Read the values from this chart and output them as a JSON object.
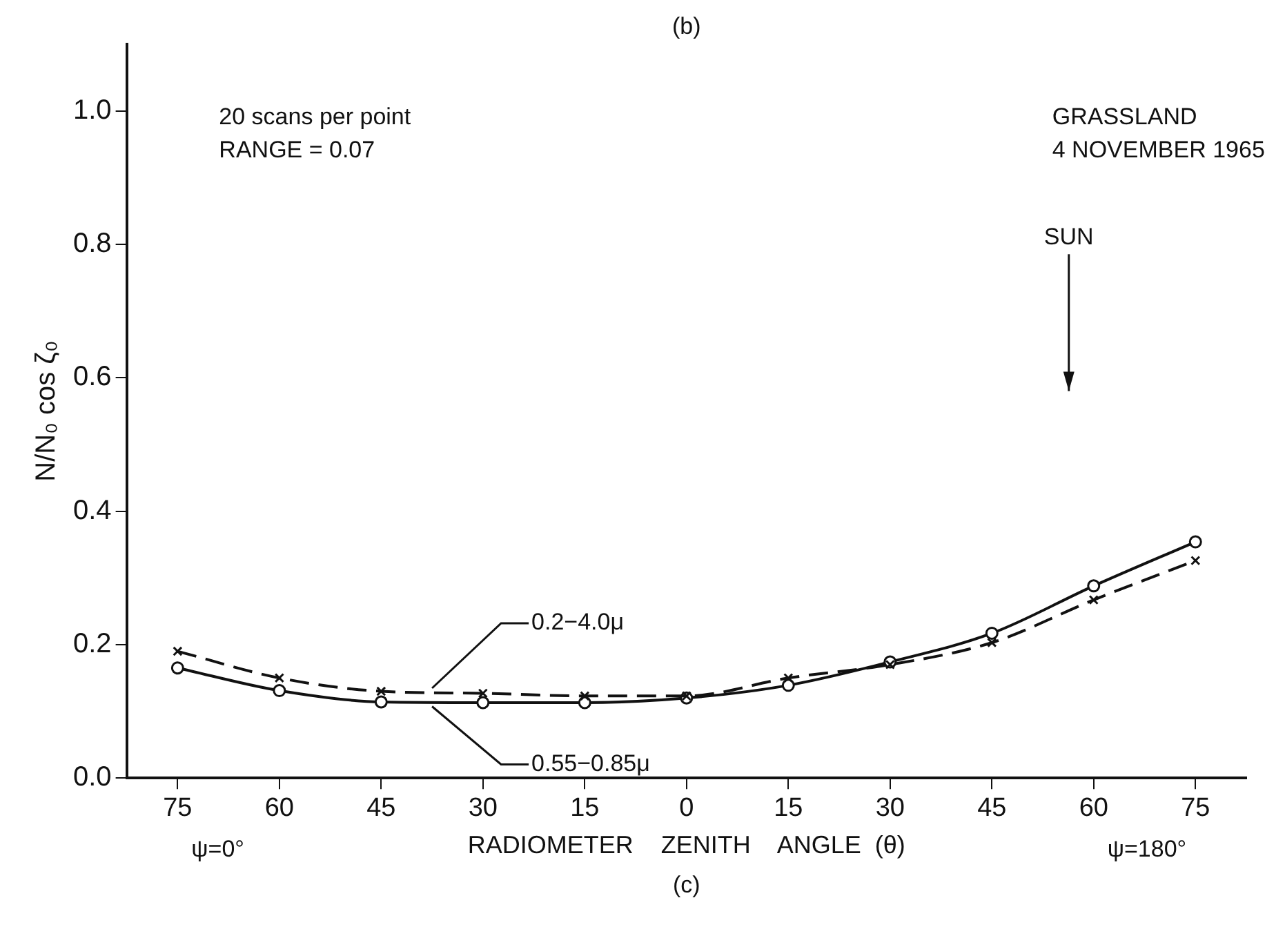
{
  "chart_data": {
    "type": "line",
    "ylabel": "N/N₀ cos ζ₀",
    "xlabel": "RADIOMETER    ZENITH    ANGLE  (θ)",
    "categories": [
      "75",
      "60",
      "45",
      "30",
      "15",
      "0",
      "15",
      "30",
      "45",
      "60",
      "75"
    ],
    "series": [
      {
        "name": "0.2−4.0μ",
        "color": "#111111",
        "marker": "cross",
        "line_style": "dashed",
        "values": [
          0.19,
          0.15,
          0.13,
          0.127,
          0.123,
          0.123,
          0.15,
          0.17,
          0.203,
          0.267,
          0.326
        ]
      },
      {
        "name": "0.55−0.85μ",
        "color": "#111111",
        "marker": "circle",
        "line_style": "solid",
        "values": [
          0.165,
          0.131,
          0.114,
          0.113,
          0.113,
          0.12,
          0.139,
          0.174,
          0.217,
          0.288,
          0.354
        ]
      }
    ],
    "ylim": [
      0,
      1.1
    ],
    "yticks": [
      {
        "value": 0,
        "label": "0.0"
      },
      0.2,
      0.4,
      0.6,
      0.8,
      {
        "value": 1,
        "label": "1.0"
      }
    ],
    "grid": false,
    "legend": false,
    "annotations": [
      "(b)",
      "20 scans per point",
      "RANGE = 0.07",
      "GRASSLAND",
      "4 NOVEMBER 1965",
      "SUN",
      "ψ=0°",
      "ψ=180°",
      "(c)"
    ]
  }
}
